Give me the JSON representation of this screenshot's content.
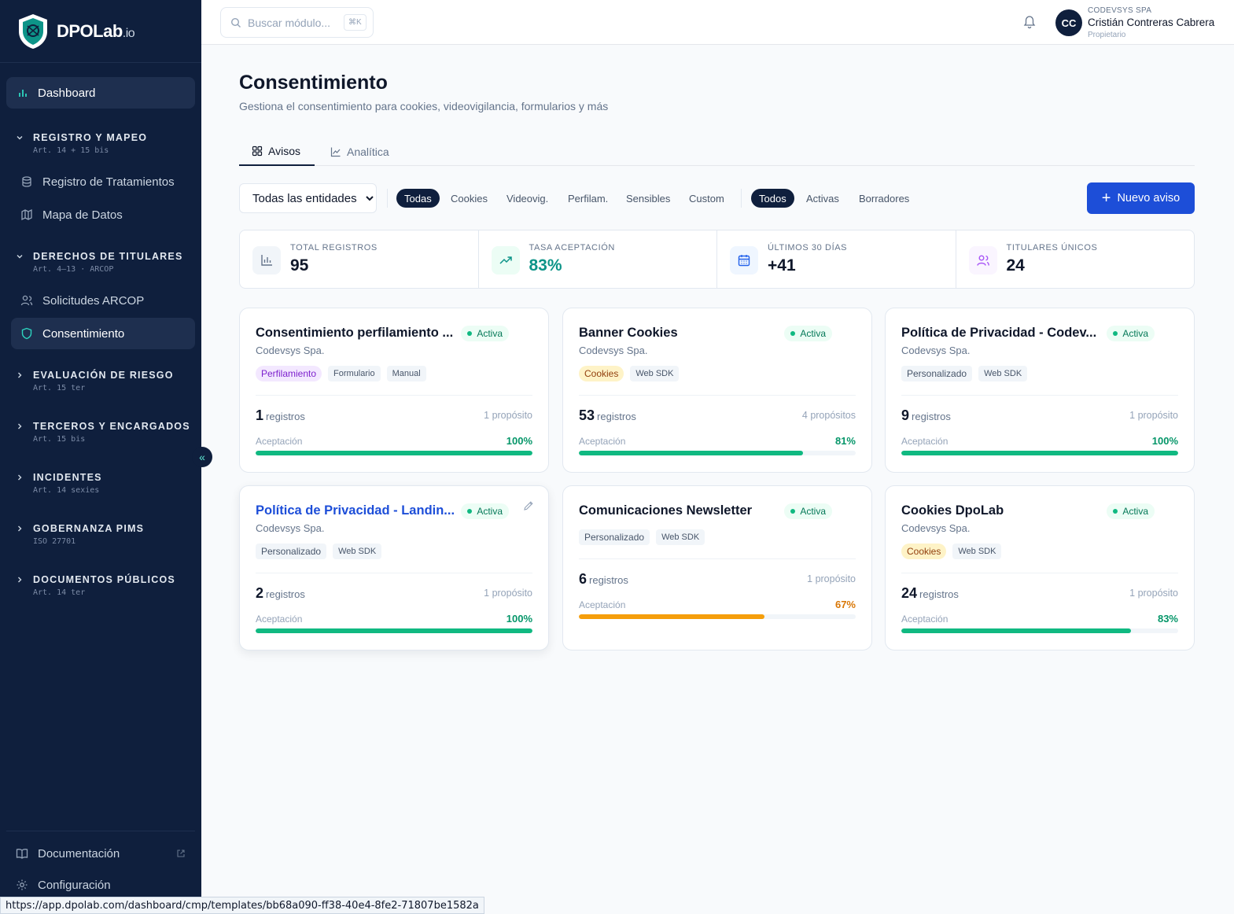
{
  "brand": {
    "name": "DPOLab",
    "suffix": ".io"
  },
  "sidebar": {
    "dashboard": "Dashboard",
    "sections": [
      {
        "title": "REGISTRO Y MAPEO",
        "sub": "Art. 14 + 15 bis"
      },
      {
        "title": "DERECHOS DE TITULARES",
        "sub": "Art. 4–13 · ARCOP"
      },
      {
        "title": "EVALUACIÓN DE RIESGO",
        "sub": "Art. 15 ter"
      },
      {
        "title": "TERCEROS Y ENCARGADOS",
        "sub": "Art. 15 bis"
      },
      {
        "title": "INCIDENTES",
        "sub": "Art. 14 sexies"
      },
      {
        "title": "GOBERNANZA PIMS",
        "sub": "ISO 27701"
      },
      {
        "title": "DOCUMENTOS PÚBLICOS",
        "sub": "Art. 14 ter"
      }
    ],
    "items": {
      "registro": "Registro de Tratamientos",
      "mapa": "Mapa de Datos",
      "solicitudes": "Solicitudes ARCOP",
      "consentimiento": "Consentimiento"
    },
    "bottom": {
      "docs": "Documentación",
      "config": "Configuración"
    },
    "collapse_glyph": "«"
  },
  "topbar": {
    "search_placeholder": "Buscar módulo...",
    "shortcut": "⌘K",
    "user": {
      "initials": "CC",
      "org": "CODEVSYS SPA",
      "name": "Cristián Contreras Cabrera",
      "role": "Propietario"
    }
  },
  "page": {
    "title": "Consentimiento",
    "subtitle": "Gestiona el consentimiento para cookies, videovigilancia, formularios y más",
    "tabs": [
      "Avisos",
      "Analítica"
    ],
    "entity_select": "Todas las entidades",
    "type_filters": [
      "Todas",
      "Cookies",
      "Videovig.",
      "Perfilam.",
      "Sensibles",
      "Custom"
    ],
    "status_filters": [
      "Todos",
      "Activas",
      "Borradores"
    ],
    "new_button": "Nuevo aviso",
    "plus": "+"
  },
  "stats": [
    {
      "label": "TOTAL REGISTROS",
      "value": "95",
      "color": "#0f172a"
    },
    {
      "label": "TASA ACEPTACIÓN",
      "value": "83%",
      "color": "#0d9488"
    },
    {
      "label": "ÚLTIMOS 30 DÍAS",
      "value": "+41",
      "color": "#0f172a"
    },
    {
      "label": "TITULARES ÚNICOS",
      "value": "24",
      "color": "#0f172a"
    }
  ],
  "cards": [
    {
      "title": "Consentimiento perfilamiento ...",
      "badge": "Activa",
      "entity": "Codevsys Spa.",
      "tags": [
        "Perfilamiento",
        "Formulario",
        "Manual"
      ],
      "count": "1",
      "count_label": "registros",
      "purposes": "1 propósito",
      "acc_label": "Aceptación",
      "acceptance": "100%",
      "rate": 100
    },
    {
      "title": "Banner Cookies",
      "badge": "Activa",
      "entity": "Codevsys Spa.",
      "tags": [
        "Cookies",
        "Web SDK"
      ],
      "count": "53",
      "count_label": "registros",
      "purposes": "4 propósitos",
      "acc_label": "Aceptación",
      "acceptance": "81%",
      "rate": 81
    },
    {
      "title": "Política de Privacidad - Codev...",
      "badge": "Activa",
      "entity": "Codevsys Spa.",
      "tags": [
        "Personalizado",
        "Web SDK"
      ],
      "count": "9",
      "count_label": "registros",
      "purposes": "1 propósito",
      "acc_label": "Aceptación",
      "acceptance": "100%",
      "rate": 100
    },
    {
      "title": "Política de Privacidad - Landin...",
      "badge": "Activa",
      "entity": "Codevsys Spa.",
      "tags": [
        "Personalizado",
        "Web SDK"
      ],
      "count": "2",
      "count_label": "registros",
      "purposes": "1 propósito",
      "acc_label": "Aceptación",
      "acceptance": "100%",
      "rate": 100
    },
    {
      "title": "Comunicaciones Newsletter",
      "badge": "Activa",
      "entity": "",
      "tags": [
        "Personalizado",
        "Web SDK"
      ],
      "count": "6",
      "count_label": "registros",
      "purposes": "1 propósito",
      "acc_label": "Aceptación",
      "acceptance": "67%",
      "rate": 67
    },
    {
      "title": "Cookies DpoLab",
      "badge": "Activa",
      "entity": "Codevsys Spa.",
      "tags": [
        "Cookies",
        "Web SDK"
      ],
      "count": "24",
      "count_label": "registros",
      "purposes": "1 propósito",
      "acc_label": "Aceptación",
      "acceptance": "83%",
      "rate": 83
    }
  ],
  "colors": {
    "accent": "#1d4ed8",
    "sidebar": "#0f1f3d",
    "success": "#10b981",
    "warning": "#f59e0b"
  },
  "statusbar": "https://app.dpolab.com/dashboard/cmp/templates/bb68a090-ff38-40e4-8fe2-71807be1582a"
}
